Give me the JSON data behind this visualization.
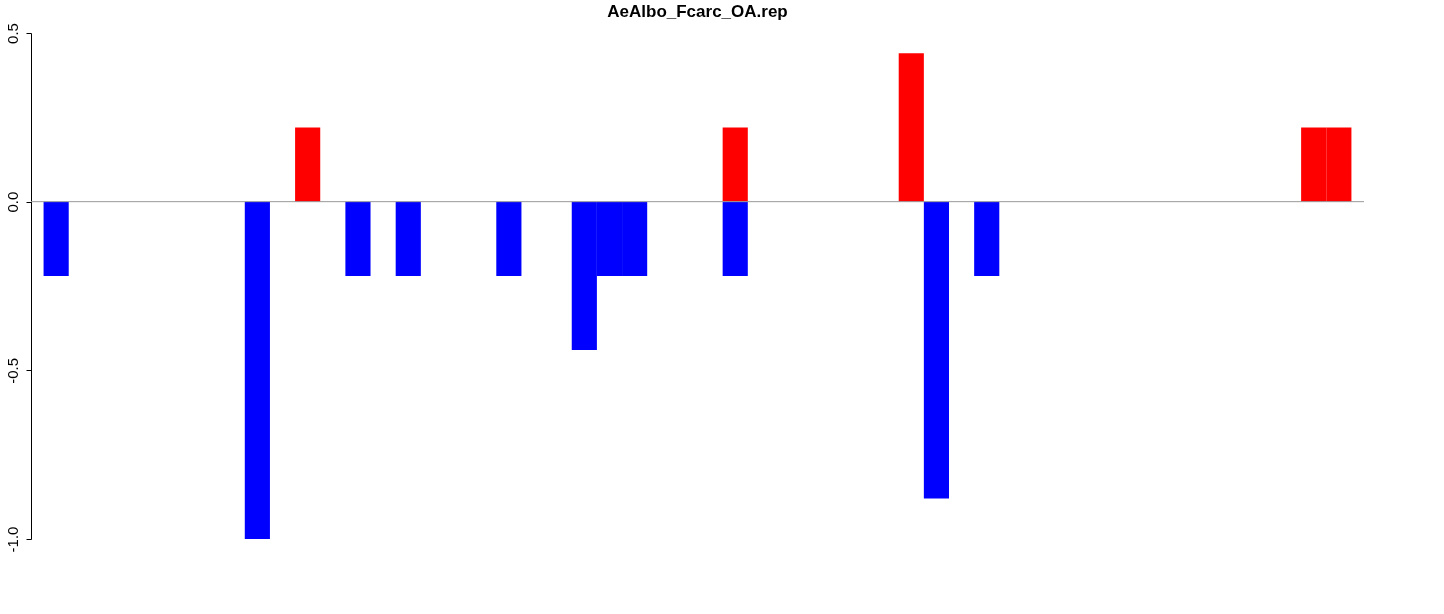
{
  "chart_data": {
    "type": "bar",
    "title": "AeAlbo_Fcarc_OA.rep",
    "tick_labels": "y",
    "grid": false,
    "legend": false,
    "categories": [
      null,
      null,
      null,
      null,
      null,
      null,
      null,
      null,
      null,
      null,
      null,
      null,
      null,
      null,
      null,
      null,
      null,
      null,
      null,
      null,
      null,
      null,
      null,
      null,
      null,
      null,
      null,
      null,
      null,
      null,
      null,
      null,
      null,
      null,
      null,
      null,
      null,
      null,
      null,
      null,
      null,
      null,
      null,
      null,
      null,
      null,
      null,
      null,
      null,
      null,
      null,
      null
    ],
    "series": [
      {
        "color": "#ff0000",
        "values": [
          null,
          null,
          null,
          null,
          null,
          null,
          null,
          null,
          null,
          null,
          0.22,
          null,
          null,
          null,
          null,
          null,
          null,
          null,
          null,
          null,
          null,
          null,
          null,
          null,
          null,
          null,
          null,
          0.22,
          null,
          null,
          null,
          null,
          null,
          null,
          0.44,
          null,
          null,
          null,
          null,
          null,
          null,
          null,
          null,
          null,
          null,
          null,
          null,
          null,
          null,
          null,
          0.22,
          0.22
        ]
      },
      {
        "color": "#0000ff",
        "values": [
          -0.22,
          null,
          null,
          null,
          null,
          null,
          null,
          null,
          -1.0,
          null,
          null,
          null,
          -0.22,
          null,
          -0.22,
          null,
          null,
          null,
          -0.22,
          null,
          null,
          -0.44,
          -0.22,
          -0.22,
          null,
          null,
          null,
          -0.22,
          null,
          null,
          null,
          null,
          null,
          null,
          null,
          -0.88,
          null,
          -0.22,
          null,
          null,
          null,
          null,
          null,
          null,
          null,
          null,
          null,
          null,
          null,
          null,
          null,
          null
        ]
      }
    ],
    "ylim": [
      -1.0,
      0.5
    ],
    "yticks": [
      0.5,
      {
        "value": 0,
        "label": "0.0"
      },
      -0.5,
      {
        "value": -1,
        "label": "-1.0"
      }
    ],
    "ref_lines": [
      {
        "axis": "y",
        "value": 0,
        "color": "#999999"
      }
    ]
  }
}
